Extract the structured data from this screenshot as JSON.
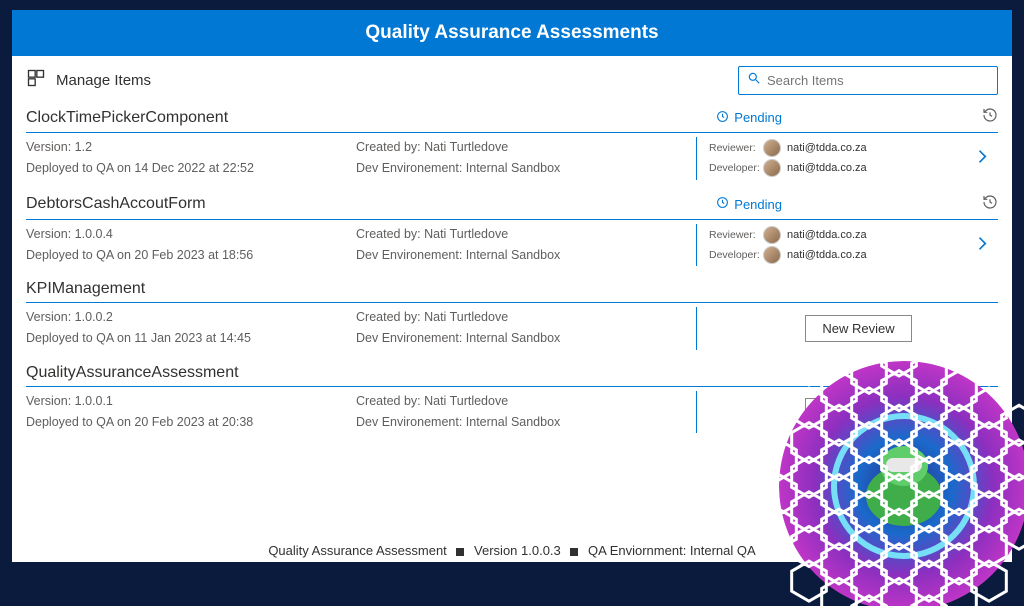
{
  "colors": {
    "primary": "#0078d4",
    "page_bg": "#0a1b3d",
    "panel_bg": "#ffffff",
    "text": "#323130",
    "muted": "#605e5c"
  },
  "header": {
    "title": "Quality Assurance Assessments"
  },
  "toolbar": {
    "manage_label": "Manage Items",
    "search_placeholder": "Search Items"
  },
  "labels": {
    "version_prefix": "Version: ",
    "deployed_prefix": "Deployed to QA on ",
    "created_by_prefix": "Created by: ",
    "dev_env_prefix": "Dev Environement: ",
    "reviewer": "Reviewer:",
    "developer": "Developer:",
    "new_review": "New Review",
    "pending": "Pending"
  },
  "items": [
    {
      "name": "ClockTimePickerComponent",
      "version": "1.2",
      "deployed": "14 Dec 2022 at 22:52",
      "created_by": "Nati Turtledove",
      "dev_env": "Internal Sandbox",
      "status": "Pending",
      "reviewer_email": "nati@tdda.co.za",
      "developer_email": "nati@tdda.co.za",
      "has_review": true
    },
    {
      "name": "DebtorsCashAccoutForm",
      "version": "1.0.0.4",
      "deployed": "20 Feb 2023 at 18:56",
      "created_by": "Nati Turtledove",
      "dev_env": "Internal Sandbox",
      "status": "Pending",
      "reviewer_email": "nati@tdda.co.za",
      "developer_email": "nati@tdda.co.za",
      "has_review": true
    },
    {
      "name": "KPIManagement",
      "version": "1.0.0.2",
      "deployed": "11 Jan 2023 at 14:45",
      "created_by": "Nati Turtledove",
      "dev_env": "Internal Sandbox",
      "has_review": false
    },
    {
      "name": "QualityAssuranceAssessment",
      "version": "1.0.0.1",
      "deployed": "20 Feb 2023 at 20:38",
      "created_by": "Nati Turtledove",
      "dev_env": "Internal Sandbox",
      "has_review": false
    }
  ],
  "footer": {
    "app_name": "Quality Assurance Assessment",
    "version": "Version 1.0.0.3",
    "env": "QA Enviornment: Internal QA"
  }
}
